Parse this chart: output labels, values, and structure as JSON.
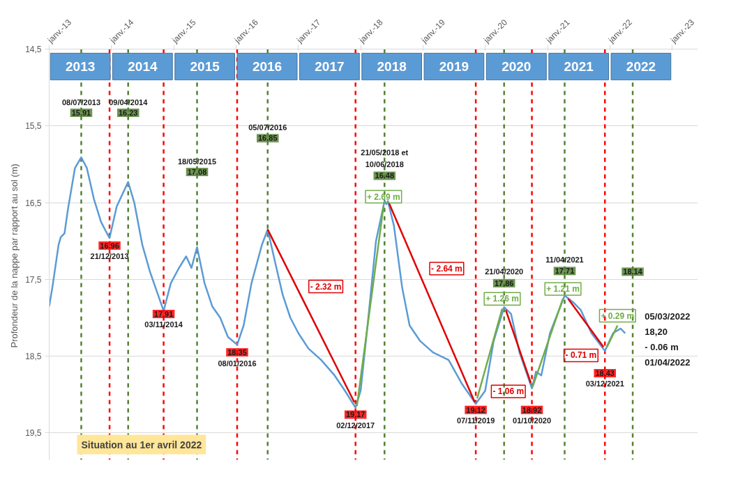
{
  "chart_data": {
    "type": "line",
    "ylabel": "Profondeur  de la nappe par rapport au sol (m)",
    "xlim": [
      "2013-01-01",
      "2023-06-01"
    ],
    "xticks": [
      {
        "value": "2013-01-01",
        "label": "janv.-13"
      },
      {
        "value": "2014-01-01",
        "label": "janv.-14"
      },
      {
        "value": "2015-01-01",
        "label": "janv.-15"
      },
      {
        "value": "2016-01-01",
        "label": "janv.-16"
      },
      {
        "value": "2017-01-01",
        "label": "janv.-17"
      },
      {
        "value": "2018-01-01",
        "label": "janv.-18"
      },
      {
        "value": "2019-01-01",
        "label": "janv.-19"
      },
      {
        "value": "2020-01-01",
        "label": "janv.-20"
      },
      {
        "value": "2021-01-01",
        "label": "janv.-21"
      },
      {
        "value": "2022-01-01",
        "label": "janv.-22"
      },
      {
        "value": "2023-01-01",
        "label": "janv.-23"
      }
    ],
    "ylim": [
      19.85,
      14.5
    ],
    "yticks": [
      {
        "value": 14.5,
        "label": "14,5"
      },
      {
        "value": 15.5,
        "label": "15,5"
      },
      {
        "value": 16.5,
        "label": "16,5"
      },
      {
        "value": 17.5,
        "label": "17,5"
      },
      {
        "value": 18.5,
        "label": "18,5"
      },
      {
        "value": 19.5,
        "label": "19,5"
      }
    ],
    "grid": "y",
    "series": [
      {
        "color": "#5b9bd5",
        "x": [
          "2013-01-01",
          "2013-01-20",
          "2013-02-25",
          "2013-03-10",
          "2013-04-01",
          "2013-04-20",
          "2013-06-01",
          "2013-07-08",
          "2013-08-10",
          "2013-09-20",
          "2013-11-01",
          "2013-12-01",
          "2013-12-21",
          "2014-02-01",
          "2014-04-09",
          "2014-05-15",
          "2014-07-01",
          "2014-08-15",
          "2014-10-01",
          "2014-11-03",
          "2014-12-15",
          "2015-02-01",
          "2015-03-15",
          "2015-04-15",
          "2015-05-18",
          "2015-07-01",
          "2015-08-15",
          "2015-10-01",
          "2015-11-15",
          "2016-01-08",
          "2016-02-15",
          "2016-04-01",
          "2016-06-01",
          "2016-07-05",
          "2016-08-20",
          "2016-10-01",
          "2016-11-15",
          "2017-01-01",
          "2017-03-01",
          "2017-05-15",
          "2017-08-01",
          "2017-10-01",
          "2017-12-02",
          "2018-01-01",
          "2018-02-15",
          "2018-04-01",
          "2018-05-21",
          "2018-06-01",
          "2018-06-10",
          "2018-07-15",
          "2018-09-01",
          "2018-10-15",
          "2018-12-15",
          "2019-03-01",
          "2019-06-01",
          "2019-08-15",
          "2019-11-07",
          "2020-01-01",
          "2020-02-20",
          "2020-04-21",
          "2020-06-01",
          "2020-07-20",
          "2020-10-01",
          "2020-10-25",
          "2020-11-25",
          "2021-01-15",
          "2021-04-11",
          "2021-06-01",
          "2021-07-15",
          "2021-09-15",
          "2021-12-03",
          "2022-01-20",
          "2022-03-05",
          "2022-04-01"
        ],
        "values": [
          17.85,
          17.6,
          17.05,
          16.95,
          16.9,
          16.6,
          16.05,
          15.91,
          16.05,
          16.45,
          16.75,
          16.88,
          16.96,
          16.55,
          16.23,
          16.5,
          17.05,
          17.4,
          17.7,
          17.91,
          17.55,
          17.35,
          17.2,
          17.35,
          17.08,
          17.55,
          17.85,
          18.0,
          18.25,
          18.35,
          18.1,
          17.55,
          17.05,
          16.85,
          17.3,
          17.7,
          18.0,
          18.2,
          18.4,
          18.55,
          18.75,
          18.95,
          19.17,
          18.95,
          18.0,
          17.0,
          16.48,
          16.52,
          16.48,
          16.8,
          17.6,
          18.1,
          18.3,
          18.45,
          18.55,
          18.85,
          19.12,
          18.95,
          18.3,
          17.86,
          17.95,
          18.45,
          18.92,
          18.7,
          18.75,
          18.2,
          17.71,
          17.8,
          17.9,
          18.2,
          18.43,
          18.2,
          18.14,
          18.2
        ]
      },
      {
        "name": "- 2.32 m",
        "color": "#e00000",
        "x": [
          "2016-07-05",
          "2017-11-25"
        ],
        "values": [
          16.85,
          19.1
        ]
      },
      {
        "name": "+ 2.69 m",
        "color": "#70ad47",
        "x": [
          "2017-12-10",
          "2018-05-15"
        ],
        "values": [
          19.15,
          16.55
        ]
      },
      {
        "name": "- 2.64 m",
        "color": "#e00000",
        "x": [
          "2018-06-15",
          "2019-11-01"
        ],
        "values": [
          16.5,
          19.1
        ]
      },
      {
        "name": "+ 1.26 m",
        "color": "#70ad47",
        "x": [
          "2019-11-15",
          "2020-04-10"
        ],
        "values": [
          19.05,
          17.88
        ]
      },
      {
        "name": "- 1.06 m",
        "color": "#e00000",
        "x": [
          "2020-05-01",
          "2020-09-25"
        ],
        "values": [
          17.9,
          18.85
        ]
      },
      {
        "name": "+ 1.21 m",
        "color": "#70ad47",
        "x": [
          "2020-10-05",
          "2021-04-01"
        ],
        "values": [
          18.9,
          17.75
        ]
      },
      {
        "name": "- 0.71 m",
        "color": "#e00000",
        "x": [
          "2021-05-01",
          "2021-11-25"
        ],
        "values": [
          17.75,
          18.38
        ]
      },
      {
        "name": "+ 0.29 m",
        "color": "#70ad47",
        "x": [
          "2021-12-15",
          "2022-02-15"
        ],
        "values": [
          18.38,
          18.1
        ]
      }
    ],
    "bands": [
      {
        "axis": "x",
        "from": "2013-01-01",
        "to": "2014-01-01",
        "label": "2013",
        "color": "#5b9bd5"
      },
      {
        "axis": "x",
        "from": "2014-01-01",
        "to": "2015-01-01",
        "label": "2014",
        "color": "#5b9bd5"
      },
      {
        "axis": "x",
        "from": "2015-01-01",
        "to": "2016-01-01",
        "label": "2015",
        "color": "#5b9bd5"
      },
      {
        "axis": "x",
        "from": "2016-01-01",
        "to": "2017-01-01",
        "label": "2016",
        "color": "#5b9bd5"
      },
      {
        "axis": "x",
        "from": "2017-01-01",
        "to": "2018-01-01",
        "label": "2017",
        "color": "#5b9bd5"
      },
      {
        "axis": "x",
        "from": "2018-01-01",
        "to": "2019-01-01",
        "label": "2018",
        "color": "#5b9bd5"
      },
      {
        "axis": "x",
        "from": "2019-01-01",
        "to": "2020-01-01",
        "label": "2019",
        "color": "#5b9bd5"
      },
      {
        "axis": "x",
        "from": "2020-01-01",
        "to": "2021-01-01",
        "label": "2020",
        "color": "#5b9bd5"
      },
      {
        "axis": "x",
        "from": "2021-01-01",
        "to": "2022-01-01",
        "label": "2021",
        "color": "#5b9bd5"
      },
      {
        "axis": "x",
        "from": "2022-01-01",
        "to": "2023-01-01",
        "label": "2022",
        "color": "#5b9bd5"
      }
    ],
    "ref_lines": [
      {
        "axis": "x",
        "value": "2013-07-08",
        "color": "#548235",
        "line_style": "dashed"
      },
      {
        "axis": "x",
        "value": "2013-12-21",
        "color": "#ff0000",
        "line_style": "dashed"
      },
      {
        "axis": "x",
        "value": "2014-04-09",
        "color": "#548235",
        "line_style": "dashed"
      },
      {
        "axis": "x",
        "value": "2014-11-03",
        "color": "#ff0000",
        "line_style": "dashed"
      },
      {
        "axis": "x",
        "value": "2015-05-18",
        "color": "#548235",
        "line_style": "dashed"
      },
      {
        "axis": "x",
        "value": "2016-01-08",
        "color": "#ff0000",
        "line_style": "dashed"
      },
      {
        "axis": "x",
        "value": "2016-07-05",
        "color": "#548235",
        "line_style": "dashed"
      },
      {
        "axis": "x",
        "value": "2017-12-02",
        "color": "#ff0000",
        "line_style": "dashed"
      },
      {
        "axis": "x",
        "value": "2018-05-21",
        "color": "#548235",
        "line_style": "dashed"
      },
      {
        "axis": "x",
        "value": "2019-11-07",
        "color": "#ff0000",
        "line_style": "dashed"
      },
      {
        "axis": "x",
        "value": "2020-04-21",
        "color": "#548235",
        "line_style": "dashed"
      },
      {
        "axis": "x",
        "value": "2020-10-01",
        "color": "#ff0000",
        "line_style": "dashed"
      },
      {
        "axis": "x",
        "value": "2021-04-11",
        "color": "#548235",
        "line_style": "dashed"
      },
      {
        "axis": "x",
        "value": "2021-12-03",
        "color": "#ff0000",
        "line_style": "dashed"
      },
      {
        "axis": "x",
        "value": "2022-05-15",
        "color": "#548235",
        "line_style": "dashed"
      }
    ],
    "annotations": [
      {
        "text": "15.91",
        "x": "2013-07-08",
        "y": 15.33
      },
      {
        "text": "08/07/2013",
        "x": "2013-07-08",
        "y": 15.19
      },
      {
        "text": "16.96",
        "x": "2013-12-21",
        "y": 17.06
      },
      {
        "text": "21/12/2013",
        "x": "2013-12-21",
        "y": 17.2
      },
      {
        "text": "16.23",
        "x": "2014-04-09",
        "y": 15.33
      },
      {
        "text": "09/04/2014",
        "x": "2014-04-09",
        "y": 15.19
      },
      {
        "text": "17.91",
        "x": "2014-11-03",
        "y": 17.95
      },
      {
        "text": "03/11/2014",
        "x": "2014-11-03",
        "y": 18.09
      },
      {
        "text": "17.08",
        "x": "2015-05-18",
        "y": 16.1
      },
      {
        "text": "18/05/2015",
        "x": "2015-05-18",
        "y": 15.96
      },
      {
        "text": "18.35",
        "x": "2016-01-08",
        "y": 18.45
      },
      {
        "text": "08/01/2016",
        "x": "2016-01-08",
        "y": 18.59
      },
      {
        "text": "16.85",
        "x": "2016-07-05",
        "y": 15.66
      },
      {
        "text": "05/07/2016",
        "x": "2016-07-05",
        "y": 15.52
      },
      {
        "text": "19.17",
        "x": "2017-12-02",
        "y": 19.26
      },
      {
        "text": "02/12/2017",
        "x": "2017-12-02",
        "y": 19.4
      },
      {
        "text": "16.48",
        "x": "2018-05-21",
        "y": 16.15
      },
      {
        "text": "10/06/2018",
        "x": "2018-05-21",
        "y": 16.0
      },
      {
        "text": "21/05/2018 et",
        "x": "2018-05-21",
        "y": 15.85
      },
      {
        "text": "19.12",
        "x": "2019-11-07",
        "y": 19.2
      },
      {
        "text": "07/11/2019",
        "x": "2019-11-07",
        "y": 19.34
      },
      {
        "text": "17.86",
        "x": "2020-04-21",
        "y": 17.55
      },
      {
        "text": "21/04/2020",
        "x": "2020-04-21",
        "y": 17.4
      },
      {
        "text": "18.92",
        "x": "2020-10-01",
        "y": 19.2
      },
      {
        "text": "01/10/2020",
        "x": "2020-10-01",
        "y": 19.34
      },
      {
        "text": "17.71",
        "x": "2021-04-11",
        "y": 17.39
      },
      {
        "text": "11/04/2021",
        "x": "2021-04-11",
        "y": 17.24
      },
      {
        "text": "18.43",
        "x": "2021-12-03",
        "y": 18.72
      },
      {
        "text": "03/12/2021",
        "x": "2021-12-03",
        "y": 18.86
      },
      {
        "text": "18.14",
        "x": "2022-05-15",
        "y": 17.4
      },
      "05/03/2022",
      "18,20",
      "- 0.06 m",
      "01/04/2022",
      "Situation au 1er avril 2022"
    ]
  }
}
